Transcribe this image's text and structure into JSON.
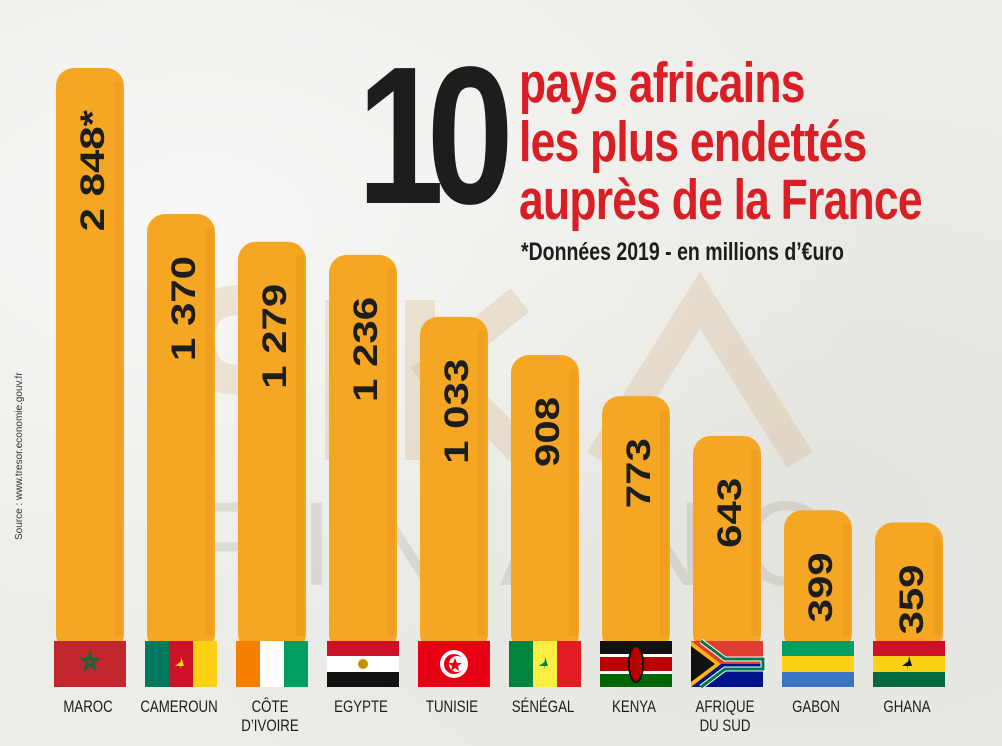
{
  "chart_data": {
    "type": "bar",
    "title_number": "10",
    "title_lines": [
      "pays africains",
      "les plus endettés",
      "auprès de la France"
    ],
    "subtitle": "*Données 2019 - en millions d’€uro",
    "source": "Source : www.tresor.economie.gouv.fr",
    "categories": [
      [
        "MAROC"
      ],
      [
        "CAMEROUN"
      ],
      [
        "CÔTE",
        "D’IVOIRE"
      ],
      [
        "EGYPTE"
      ],
      [
        "TUNISIE"
      ],
      [
        "SÉNÉGAL"
      ],
      [
        "KENYA"
      ],
      [
        "AFRIQUE",
        "DU SUD"
      ],
      [
        "GABON"
      ],
      [
        "GHANA"
      ]
    ],
    "values": [
      2848,
      1370,
      1279,
      1236,
      1033,
      908,
      773,
      643,
      399,
      359
    ],
    "value_labels": [
      "2 848*",
      "1 370",
      "1 279",
      "1 236",
      "1 033",
      "908",
      "773",
      "643",
      "399",
      "359"
    ],
    "flags": [
      "morocco-flag",
      "cameroon-flag",
      "cote-divoire-flag",
      "egypt-flag",
      "tunisia-flag",
      "senegal-flag",
      "kenya-flag",
      "south-africa-flag",
      "gabon-flag",
      "ghana-flag"
    ],
    "colors": {
      "bar": "#f5a623",
      "title_accent": "#d81f26",
      "text": "#1d1d1d"
    }
  }
}
